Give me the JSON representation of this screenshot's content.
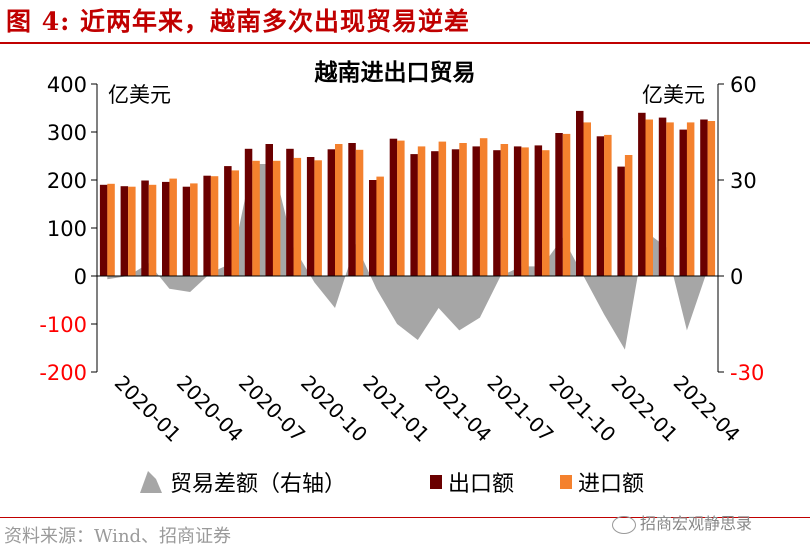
{
  "figure_title": "图 4:  近两年来，越南多次出现贸易逆差",
  "source_text": "资料来源：Wind、招商证券",
  "watermark_text": "招商宏观静思录",
  "colors": {
    "export": "#6a0000",
    "import": "#f4812e",
    "balance": "#a6a6a6",
    "title_red": "#c00000",
    "negative_label": "#ff0000"
  },
  "chart_data": {
    "type": "bar",
    "title": "越南进出口贸易",
    "left_unit": "亿美元",
    "right_unit": "亿美元",
    "ylim_left": [
      -200,
      400
    ],
    "yticks_left": [
      -200,
      -100,
      0,
      100,
      200,
      300,
      400
    ],
    "ytick_labels_left": [
      "-200",
      "-100",
      "0",
      "100",
      "200",
      "300",
      "400"
    ],
    "ylim_right": [
      -30,
      60
    ],
    "yticks_right": [
      -30,
      0,
      30,
      60
    ],
    "ytick_labels_right": [
      "-30",
      "0",
      "30",
      "60"
    ],
    "categories": [
      "2020-01",
      "2020-02",
      "2020-03",
      "2020-04",
      "2020-05",
      "2020-06",
      "2020-07",
      "2020-08",
      "2020-09",
      "2020-10",
      "2020-11",
      "2020-12",
      "2021-01",
      "2021-02",
      "2021-03",
      "2021-04",
      "2021-05",
      "2021-06",
      "2021-07",
      "2021-08",
      "2021-09",
      "2021-10",
      "2021-11",
      "2021-12",
      "2022-01",
      "2022-02",
      "2022-03",
      "2022-04",
      "2022-05",
      "2022-06"
    ],
    "xtick_labels": [
      "2020-01",
      "2020-04",
      "2020-07",
      "2020-10",
      "2021-01",
      "2021-04",
      "2021-07",
      "2021-10",
      "2022-01",
      "2022-04"
    ],
    "series": [
      {
        "name": "贸易差额（右轴）",
        "type": "area",
        "axis": "right",
        "values": [
          -1,
          0,
          4,
          -4,
          -5,
          1,
          4,
          35,
          35,
          9,
          -2,
          -10,
          10,
          -4,
          -15,
          -20,
          -10,
          -17,
          -13,
          0,
          3,
          3,
          12,
          0,
          -12,
          -23,
          14,
          9,
          -17,
          2
        ]
      },
      {
        "name": "出口额",
        "type": "bar",
        "axis": "left",
        "values": [
          190,
          187,
          199,
          196,
          186,
          209,
          229,
          265,
          275,
          265,
          248,
          264,
          277,
          200,
          286,
          254,
          260,
          264,
          270,
          262,
          270,
          272,
          298,
          344,
          291,
          228,
          340,
          330,
          305,
          326
        ]
      },
      {
        "name": "进口额",
        "type": "bar",
        "axis": "left",
        "values": [
          192,
          186,
          190,
          203,
          193,
          208,
          220,
          240,
          240,
          246,
          241,
          275,
          263,
          207,
          282,
          270,
          280,
          277,
          287,
          275,
          268,
          262,
          296,
          320,
          294,
          252,
          326,
          320,
          320,
          323
        ]
      }
    ],
    "legend_position": "bottom",
    "grid": false
  }
}
